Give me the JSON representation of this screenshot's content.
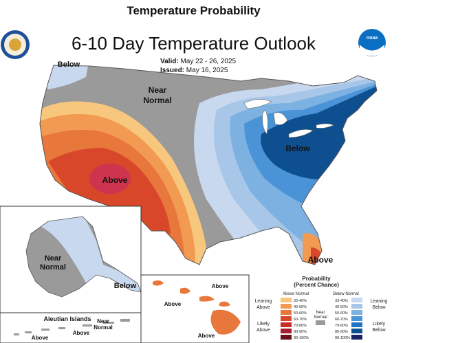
{
  "header": {
    "page_title": "Temperature Probability",
    "map_title": "6-10 Day Temperature Outlook",
    "valid_label": "Valid:",
    "valid_value": "May 22 - 26, 2025",
    "issued_label": "Issued:",
    "issued_value": "May 16, 2025"
  },
  "logos": {
    "left": "NOAA/Commerce seal",
    "right": "noaa"
  },
  "map": {
    "labels": {
      "nw_below": "Below",
      "near_normal_1": "Near",
      "near_normal_2": "Normal",
      "sw_above": "Above",
      "east_below": "Below",
      "fl_above": "Above",
      "ak_near_1": "Near",
      "ak_near_2": "Normal",
      "ak_below": "Below",
      "aleutian_title": "Aleutian Islands",
      "aleutian_near_1": "Near",
      "aleutian_near_2": "Normal",
      "aleutian_above_1": "Above",
      "aleutian_above_2": "Above",
      "hi_above_1": "Above",
      "hi_above_2": "Above",
      "hi_above_3": "Above"
    },
    "colors": {
      "above": [
        "#f7c77d",
        "#f39a52",
        "#e8773b",
        "#d9472a",
        "#c92d2a",
        "#a81c2f",
        "#6b0f1a"
      ],
      "below": [
        "#c8d8ee",
        "#a7c6e8",
        "#7cb1e1",
        "#4a93d6",
        "#2174c2",
        "#0e4f8f",
        "#1b2364"
      ],
      "near": "#9a9a9a"
    }
  },
  "legend": {
    "title": "Probability",
    "subtitle": "(Percent Chance)",
    "above_header": "Above Normal",
    "below_header": "Below Normal",
    "near_label_1": "Near",
    "near_label_2": "Normal",
    "leaning_above_1": "Leaning",
    "leaning_above_2": "Above",
    "likely_above_1": "Likely",
    "likely_above_2": "Above",
    "leaning_below_1": "Leaning",
    "leaning_below_2": "Below",
    "likely_below_1": "Likely",
    "likely_below_2": "Below",
    "ranges": [
      "33-40%",
      "40-50%",
      "50-60%",
      "60-70%",
      "70-80%",
      "80-90%",
      "90-100%"
    ]
  }
}
